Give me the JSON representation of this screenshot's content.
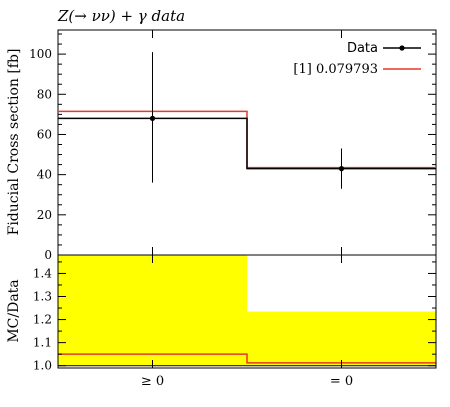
{
  "chart_data": [
    {
      "panel": "main",
      "type": "line",
      "title": "Z(→ νν) + γ data",
      "ylabel": "Fiducial Cross section [fb]",
      "ylim": [
        0,
        112
      ],
      "y_ticks": [
        0,
        20,
        40,
        60,
        80,
        100
      ],
      "categories": [
        "≥ 0",
        "= 0"
      ],
      "series": [
        {
          "name": "Data",
          "kind": "points_with_errors",
          "color": "#000000",
          "values": [
            68,
            43
          ],
          "err_low": [
            32,
            10
          ],
          "err_high": [
            33,
            10
          ]
        },
        {
          "name": "[1] 0.079793",
          "kind": "step",
          "color": "#e8372b",
          "values": [
            71.5,
            43.5
          ]
        },
        {
          "kind": "step",
          "color": "#000000",
          "values": [
            68,
            43
          ]
        }
      ],
      "legend": {
        "position": "top-right"
      }
    },
    {
      "panel": "ratio",
      "type": "area",
      "ylabel": "MC/Data",
      "ylim": [
        0.99,
        1.48
      ],
      "y_ticks": [
        "1.0",
        "1.1",
        "1.2",
        "1.3",
        "1.4"
      ],
      "categories": [
        "≥ 0",
        "= 0"
      ],
      "band": {
        "color": "#ffff00",
        "low": [
          1.0,
          1.0
        ],
        "high": [
          1.48,
          1.235
        ]
      },
      "series": [
        {
          "name": "[1] 0.079793",
          "kind": "step",
          "color": "#e8372b",
          "values": [
            1.05,
            1.012
          ]
        }
      ]
    }
  ]
}
